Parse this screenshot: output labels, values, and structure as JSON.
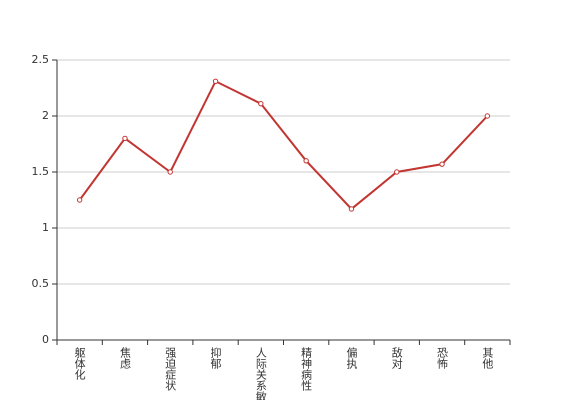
{
  "chart_data": {
    "type": "line",
    "categories": [
      "躯体化",
      "焦虑",
      "强迫症状",
      "抑郁",
      "人际关系敏感",
      "精神病性",
      "偏执",
      "敌对",
      "恐怖",
      "其他"
    ],
    "series": [
      {
        "color": "#c23531",
        "values": [
          1.25,
          1.8,
          1.5,
          2.31,
          2.11,
          1.6,
          1.17,
          1.5,
          1.57,
          2.0
        ]
      }
    ],
    "ylim": [
      0,
      2.5
    ],
    "yticks": [
      0,
      0.5,
      1,
      1.5,
      2,
      2.5
    ],
    "grid": true
  }
}
